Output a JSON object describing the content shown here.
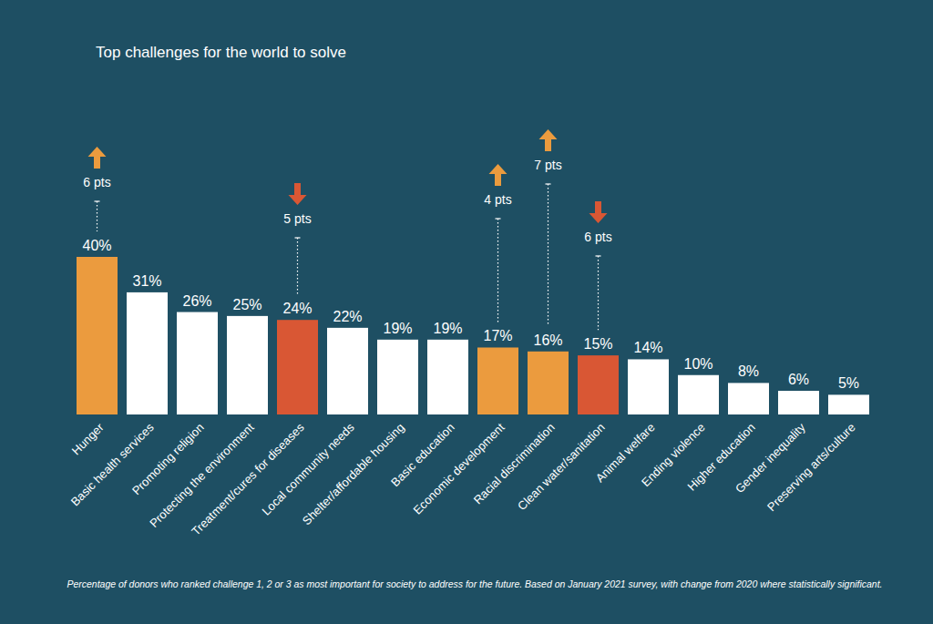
{
  "chart_data": {
    "type": "bar",
    "title": "Top challenges for the world to solve",
    "footnote": "Percentage of donors who ranked challenge 1, 2 or 3 as most important for society to address for the future. Based on January 2021 survey, with change from 2020 where statistically significant.",
    "categories": [
      "Hunger",
      "Basic health services",
      "Promoting religion",
      "Protecting the environment",
      "Treatment/cures for diseases",
      "Local community needs",
      "Shelter/affordable housing",
      "Basic education",
      "Economic development",
      "Racial discrimination",
      "Clean water/sanitation",
      "Animal welfare",
      "Ending violence",
      "Higher education",
      "Gender inequality",
      "Preserving arts/culture"
    ],
    "values": [
      40,
      31,
      26,
      25,
      24,
      22,
      19,
      19,
      17,
      16,
      15,
      14,
      10,
      8,
      6,
      5
    ],
    "value_labels": [
      "40%",
      "31%",
      "26%",
      "25%",
      "24%",
      "22%",
      "19%",
      "19%",
      "17%",
      "16%",
      "15%",
      "14%",
      "10%",
      "8%",
      "6%",
      "5%"
    ],
    "colors": [
      "#eb9b3e",
      "#ffffff",
      "#ffffff",
      "#ffffff",
      "#d95734",
      "#ffffff",
      "#ffffff",
      "#ffffff",
      "#eb9b3e",
      "#eb9b3e",
      "#d95734",
      "#ffffff",
      "#ffffff",
      "#ffffff",
      "#ffffff",
      "#ffffff"
    ],
    "changes": [
      6,
      null,
      null,
      null,
      -5,
      null,
      null,
      null,
      4,
      7,
      -6,
      null,
      null,
      null,
      null,
      null
    ],
    "change_labels": [
      "6 pts",
      null,
      null,
      null,
      "5 pts",
      null,
      null,
      null,
      "4 pts",
      "7 pts",
      "6 pts",
      null,
      null,
      null,
      null,
      null
    ],
    "ylim": [
      0,
      40
    ],
    "data_labels": true,
    "tick_labels": "x",
    "grid": false
  }
}
